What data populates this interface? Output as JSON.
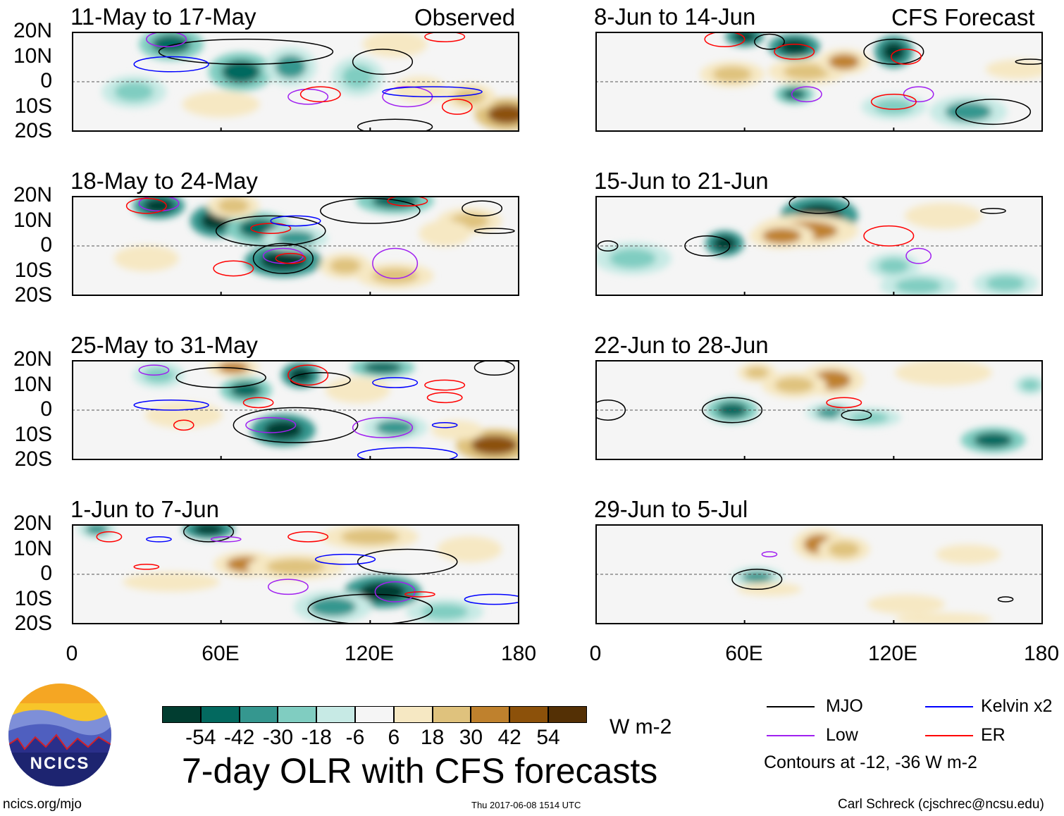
{
  "panel_titles": {
    "observed": "Observed",
    "forecast": "CFS Forecast"
  },
  "lat_labels": [
    "20N",
    "10N",
    "0",
    "10S",
    "20S"
  ],
  "lon_labels": [
    "0",
    "60E",
    "120E",
    "180"
  ],
  "panels": [
    {
      "title": "11-May to 17-May",
      "anoms": [
        [
          40,
          15,
          10,
          5,
          -42
        ],
        [
          68,
          4,
          10,
          6,
          -42
        ],
        [
          88,
          6,
          8,
          6,
          -30
        ],
        [
          25,
          -4,
          10,
          5,
          -18
        ],
        [
          115,
          2,
          8,
          6,
          -18
        ],
        [
          175,
          -13,
          10,
          5,
          54
        ],
        [
          160,
          -6,
          8,
          4,
          30
        ],
        [
          60,
          -9,
          12,
          4,
          18
        ],
        [
          140,
          -3,
          8,
          4,
          18
        ],
        [
          130,
          15,
          10,
          4,
          18
        ]
      ],
      "contours": [
        [
          125,
          8,
          12,
          5,
          "MJO"
        ],
        [
          70,
          12,
          35,
          5,
          "MJO"
        ],
        [
          130,
          -18,
          15,
          3,
          "MJO"
        ],
        [
          95,
          -6,
          8,
          3,
          "Low"
        ],
        [
          38,
          17,
          8,
          3,
          "Low"
        ],
        [
          135,
          -6,
          10,
          4,
          "Low"
        ],
        [
          150,
          18,
          8,
          2,
          "ER"
        ],
        [
          100,
          -5,
          8,
          3,
          "ER"
        ],
        [
          155,
          -10,
          6,
          3,
          "ER"
        ],
        [
          40,
          7,
          15,
          3,
          "Kelvin"
        ],
        [
          145,
          -4,
          20,
          2,
          "Kelvin"
        ]
      ]
    },
    {
      "title": "8-Jun to 14-Jun",
      "anoms": [
        [
          60,
          18,
          6,
          3,
          -54
        ],
        [
          80,
          14,
          8,
          4,
          -54
        ],
        [
          120,
          12,
          6,
          5,
          -54
        ],
        [
          85,
          4,
          12,
          4,
          30
        ],
        [
          100,
          8,
          8,
          4,
          42
        ],
        [
          55,
          3,
          10,
          4,
          30
        ],
        [
          80,
          -5,
          6,
          3,
          -42
        ],
        [
          150,
          -12,
          12,
          5,
          -30
        ],
        [
          120,
          -10,
          10,
          4,
          -18
        ],
        [
          170,
          5,
          10,
          3,
          18
        ]
      ],
      "contours": [
        [
          120,
          12,
          12,
          5,
          "MJO"
        ],
        [
          70,
          16,
          6,
          3,
          "MJO"
        ],
        [
          160,
          -12,
          15,
          5,
          "MJO"
        ],
        [
          175,
          8,
          6,
          1,
          "MJO"
        ],
        [
          85,
          -5,
          6,
          3,
          "Low"
        ],
        [
          130,
          -5,
          6,
          3,
          "Low"
        ],
        [
          80,
          12,
          8,
          3,
          "ER"
        ],
        [
          52,
          17,
          8,
          3,
          "ER"
        ],
        [
          120,
          -8,
          9,
          3,
          "ER"
        ],
        [
          125,
          10,
          6,
          3,
          "ER"
        ]
      ]
    },
    {
      "title": "18-May to 24-May",
      "anoms": [
        [
          35,
          16,
          8,
          4,
          -54
        ],
        [
          58,
          10,
          8,
          5,
          -54
        ],
        [
          75,
          7,
          10,
          5,
          -42
        ],
        [
          85,
          -6,
          12,
          5,
          -54
        ],
        [
          90,
          3,
          10,
          4,
          -30
        ],
        [
          130,
          18,
          12,
          4,
          -42
        ],
        [
          65,
          16,
          8,
          4,
          30
        ],
        [
          160,
          10,
          10,
          4,
          30
        ],
        [
          30,
          -5,
          10,
          4,
          18
        ],
        [
          110,
          -8,
          8,
          4,
          30
        ],
        [
          130,
          -12,
          12,
          4,
          30
        ],
        [
          150,
          5,
          8,
          4,
          18
        ]
      ],
      "contours": [
        [
          120,
          14,
          20,
          5,
          "MJO"
        ],
        [
          80,
          6,
          22,
          6,
          "MJO"
        ],
        [
          85,
          -5,
          12,
          6,
          "MJO"
        ],
        [
          165,
          15,
          8,
          3,
          "MJO"
        ],
        [
          170,
          6,
          8,
          1,
          "MJO"
        ],
        [
          35,
          17,
          8,
          3,
          "Low"
        ],
        [
          85,
          -4,
          8,
          3,
          "Low"
        ],
        [
          130,
          -7,
          9,
          6,
          "Low"
        ],
        [
          30,
          16,
          8,
          3,
          "ER"
        ],
        [
          88,
          -5,
          6,
          2,
          "ER"
        ],
        [
          80,
          7,
          8,
          2,
          "ER"
        ],
        [
          135,
          18,
          8,
          2,
          "ER"
        ],
        [
          65,
          -9,
          8,
          3,
          "ER"
        ],
        [
          90,
          10,
          10,
          2,
          "Kelvin"
        ]
      ]
    },
    {
      "title": "15-Jun to 21-Jun",
      "anoms": [
        [
          52,
          1,
          6,
          4,
          -54
        ],
        [
          90,
          12,
          12,
          6,
          -54
        ],
        [
          85,
          6,
          16,
          5,
          42
        ],
        [
          75,
          4,
          10,
          4,
          42
        ],
        [
          140,
          12,
          12,
          4,
          18
        ],
        [
          120,
          -8,
          8,
          4,
          -18
        ],
        [
          130,
          -16,
          12,
          4,
          -18
        ],
        [
          15,
          -5,
          12,
          5,
          -18
        ],
        [
          165,
          -15,
          10,
          4,
          -18
        ]
      ],
      "contours": [
        [
          90,
          17,
          12,
          4,
          "MJO"
        ],
        [
          45,
          0,
          9,
          4,
          "MJO"
        ],
        [
          5,
          0,
          4,
          2,
          "MJO"
        ],
        [
          160,
          14,
          5,
          1,
          "MJO"
        ],
        [
          118,
          4,
          10,
          4,
          "ER"
        ],
        [
          130,
          -4,
          5,
          3,
          "Low"
        ]
      ]
    },
    {
      "title": "25-May to 31-May",
      "anoms": [
        [
          35,
          14,
          8,
          4,
          -18
        ],
        [
          85,
          -8,
          10,
          5,
          -54
        ],
        [
          92,
          14,
          6,
          4,
          -54
        ],
        [
          70,
          8,
          8,
          4,
          -42
        ],
        [
          125,
          17,
          10,
          3,
          -42
        ],
        [
          65,
          17,
          8,
          3,
          42
        ],
        [
          115,
          8,
          10,
          4,
          18
        ],
        [
          170,
          -14,
          12,
          5,
          54
        ],
        [
          155,
          -8,
          8,
          3,
          18
        ],
        [
          45,
          -2,
          12,
          4,
          18
        ],
        [
          130,
          -7,
          10,
          4,
          -30
        ]
      ],
      "contours": [
        [
          90,
          -6,
          25,
          7,
          "MJO"
        ],
        [
          60,
          13,
          18,
          4,
          "MJO"
        ],
        [
          100,
          12,
          12,
          3,
          "MJO"
        ],
        [
          170,
          17,
          8,
          3,
          "MJO"
        ],
        [
          33,
          16,
          6,
          2,
          "Low"
        ],
        [
          80,
          -6,
          10,
          3,
          "Low"
        ],
        [
          125,
          -7,
          12,
          4,
          "Low"
        ],
        [
          95,
          14,
          8,
          4,
          "ER"
        ],
        [
          150,
          10,
          8,
          2,
          "ER"
        ],
        [
          150,
          5,
          7,
          2,
          "ER"
        ],
        [
          75,
          3,
          6,
          2,
          "ER"
        ],
        [
          45,
          -6,
          4,
          2,
          "ER"
        ],
        [
          40,
          2,
          15,
          2,
          "Kelvin"
        ],
        [
          130,
          11,
          9,
          2,
          "Kelvin"
        ],
        [
          135,
          -18,
          20,
          3,
          "Kelvin"
        ],
        [
          150,
          -6,
          5,
          1,
          "Kelvin"
        ]
      ]
    },
    {
      "title": "22-Jun to 28-Jun",
      "anoms": [
        [
          55,
          0,
          8,
          4,
          -42
        ],
        [
          95,
          12,
          10,
          5,
          42
        ],
        [
          80,
          10,
          10,
          4,
          30
        ],
        [
          65,
          15,
          6,
          3,
          30
        ],
        [
          140,
          15,
          15,
          4,
          18
        ],
        [
          95,
          -1,
          8,
          3,
          -30
        ],
        [
          160,
          -12,
          10,
          4,
          -42
        ],
        [
          110,
          -3,
          10,
          3,
          -18
        ],
        [
          175,
          10,
          5,
          3,
          -18
        ]
      ],
      "contours": [
        [
          55,
          0,
          12,
          5,
          "MJO"
        ],
        [
          5,
          0,
          7,
          4,
          "MJO"
        ],
        [
          105,
          -2,
          6,
          2,
          "MJO"
        ],
        [
          100,
          3,
          7,
          2,
          "ER"
        ]
      ]
    },
    {
      "title": "1-Jun to 7-Jun",
      "anoms": [
        [
          55,
          18,
          8,
          3,
          -54
        ],
        [
          10,
          18,
          6,
          3,
          -30
        ],
        [
          70,
          4,
          10,
          4,
          42
        ],
        [
          90,
          3,
          15,
          4,
          30
        ],
        [
          120,
          15,
          15,
          4,
          30
        ],
        [
          125,
          -7,
          12,
          5,
          -54
        ],
        [
          105,
          -13,
          12,
          5,
          -30
        ],
        [
          150,
          -15,
          12,
          4,
          -18
        ],
        [
          40,
          -3,
          15,
          3,
          18
        ],
        [
          160,
          10,
          10,
          4,
          18
        ]
      ],
      "contours": [
        [
          55,
          17,
          10,
          4,
          "MJO"
        ],
        [
          120,
          -14,
          25,
          6,
          "MJO"
        ],
        [
          135,
          5,
          20,
          5,
          "MJO"
        ],
        [
          87,
          -5,
          8,
          3,
          "Low"
        ],
        [
          62,
          14,
          6,
          1,
          "Low"
        ],
        [
          130,
          -7,
          8,
          4,
          "Low"
        ],
        [
          15,
          15,
          5,
          2,
          "ER"
        ],
        [
          95,
          15,
          8,
          2,
          "ER"
        ],
        [
          30,
          3,
          5,
          1,
          "ER"
        ],
        [
          140,
          -8,
          6,
          1,
          "ER"
        ],
        [
          35,
          14,
          5,
          1,
          "Kelvin"
        ],
        [
          110,
          6,
          12,
          2,
          "Kelvin"
        ],
        [
          170,
          -10,
          12,
          2,
          "Kelvin"
        ]
      ]
    },
    {
      "title": "29-Jun to 5-Jul",
      "anoms": [
        [
          65,
          -1,
          8,
          3,
          -30
        ],
        [
          90,
          12,
          8,
          5,
          42
        ],
        [
          100,
          10,
          8,
          4,
          30
        ],
        [
          70,
          -6,
          10,
          2,
          18
        ],
        [
          125,
          -12,
          12,
          3,
          18
        ],
        [
          150,
          8,
          10,
          3,
          18
        ],
        [
          140,
          -18,
          15,
          2,
          18
        ]
      ],
      "contours": [
        [
          65,
          -2,
          10,
          4,
          "MJO"
        ],
        [
          165,
          -10,
          3,
          1,
          "MJO"
        ],
        [
          70,
          8,
          3,
          1,
          "Low"
        ]
      ]
    }
  ],
  "colorbar": {
    "colors": [
      "#013d30",
      "#03695f",
      "#35978f",
      "#80cdc1",
      "#c7eae5",
      "#f5f5f5",
      "#f6e8c3",
      "#dfc27d",
      "#bf812d",
      "#8c510a",
      "#543005"
    ],
    "labels": [
      "-54",
      "-42",
      "-30",
      "-18",
      "-6",
      "6",
      "18",
      "30",
      "42",
      "54"
    ],
    "units": "W m-2"
  },
  "main_title": "7-day OLR with CFS forecasts",
  "legend": {
    "items": [
      {
        "label": "MJO",
        "color": "#000000"
      },
      {
        "label": "Kelvin x2",
        "color": "#0000ff"
      },
      {
        "label": "Low",
        "color": "#a020f0"
      },
      {
        "label": "ER",
        "color": "#ff0000"
      }
    ],
    "note": "Contours at -12, -36 W m-2"
  },
  "logo": {
    "text": "NCICS"
  },
  "footer": {
    "url": "ncics.org/mjo",
    "timestamp": "Thu 2017-06-08 1514 UTC",
    "author": "Carl Schreck (cjschrec@ncsu.edu)"
  }
}
